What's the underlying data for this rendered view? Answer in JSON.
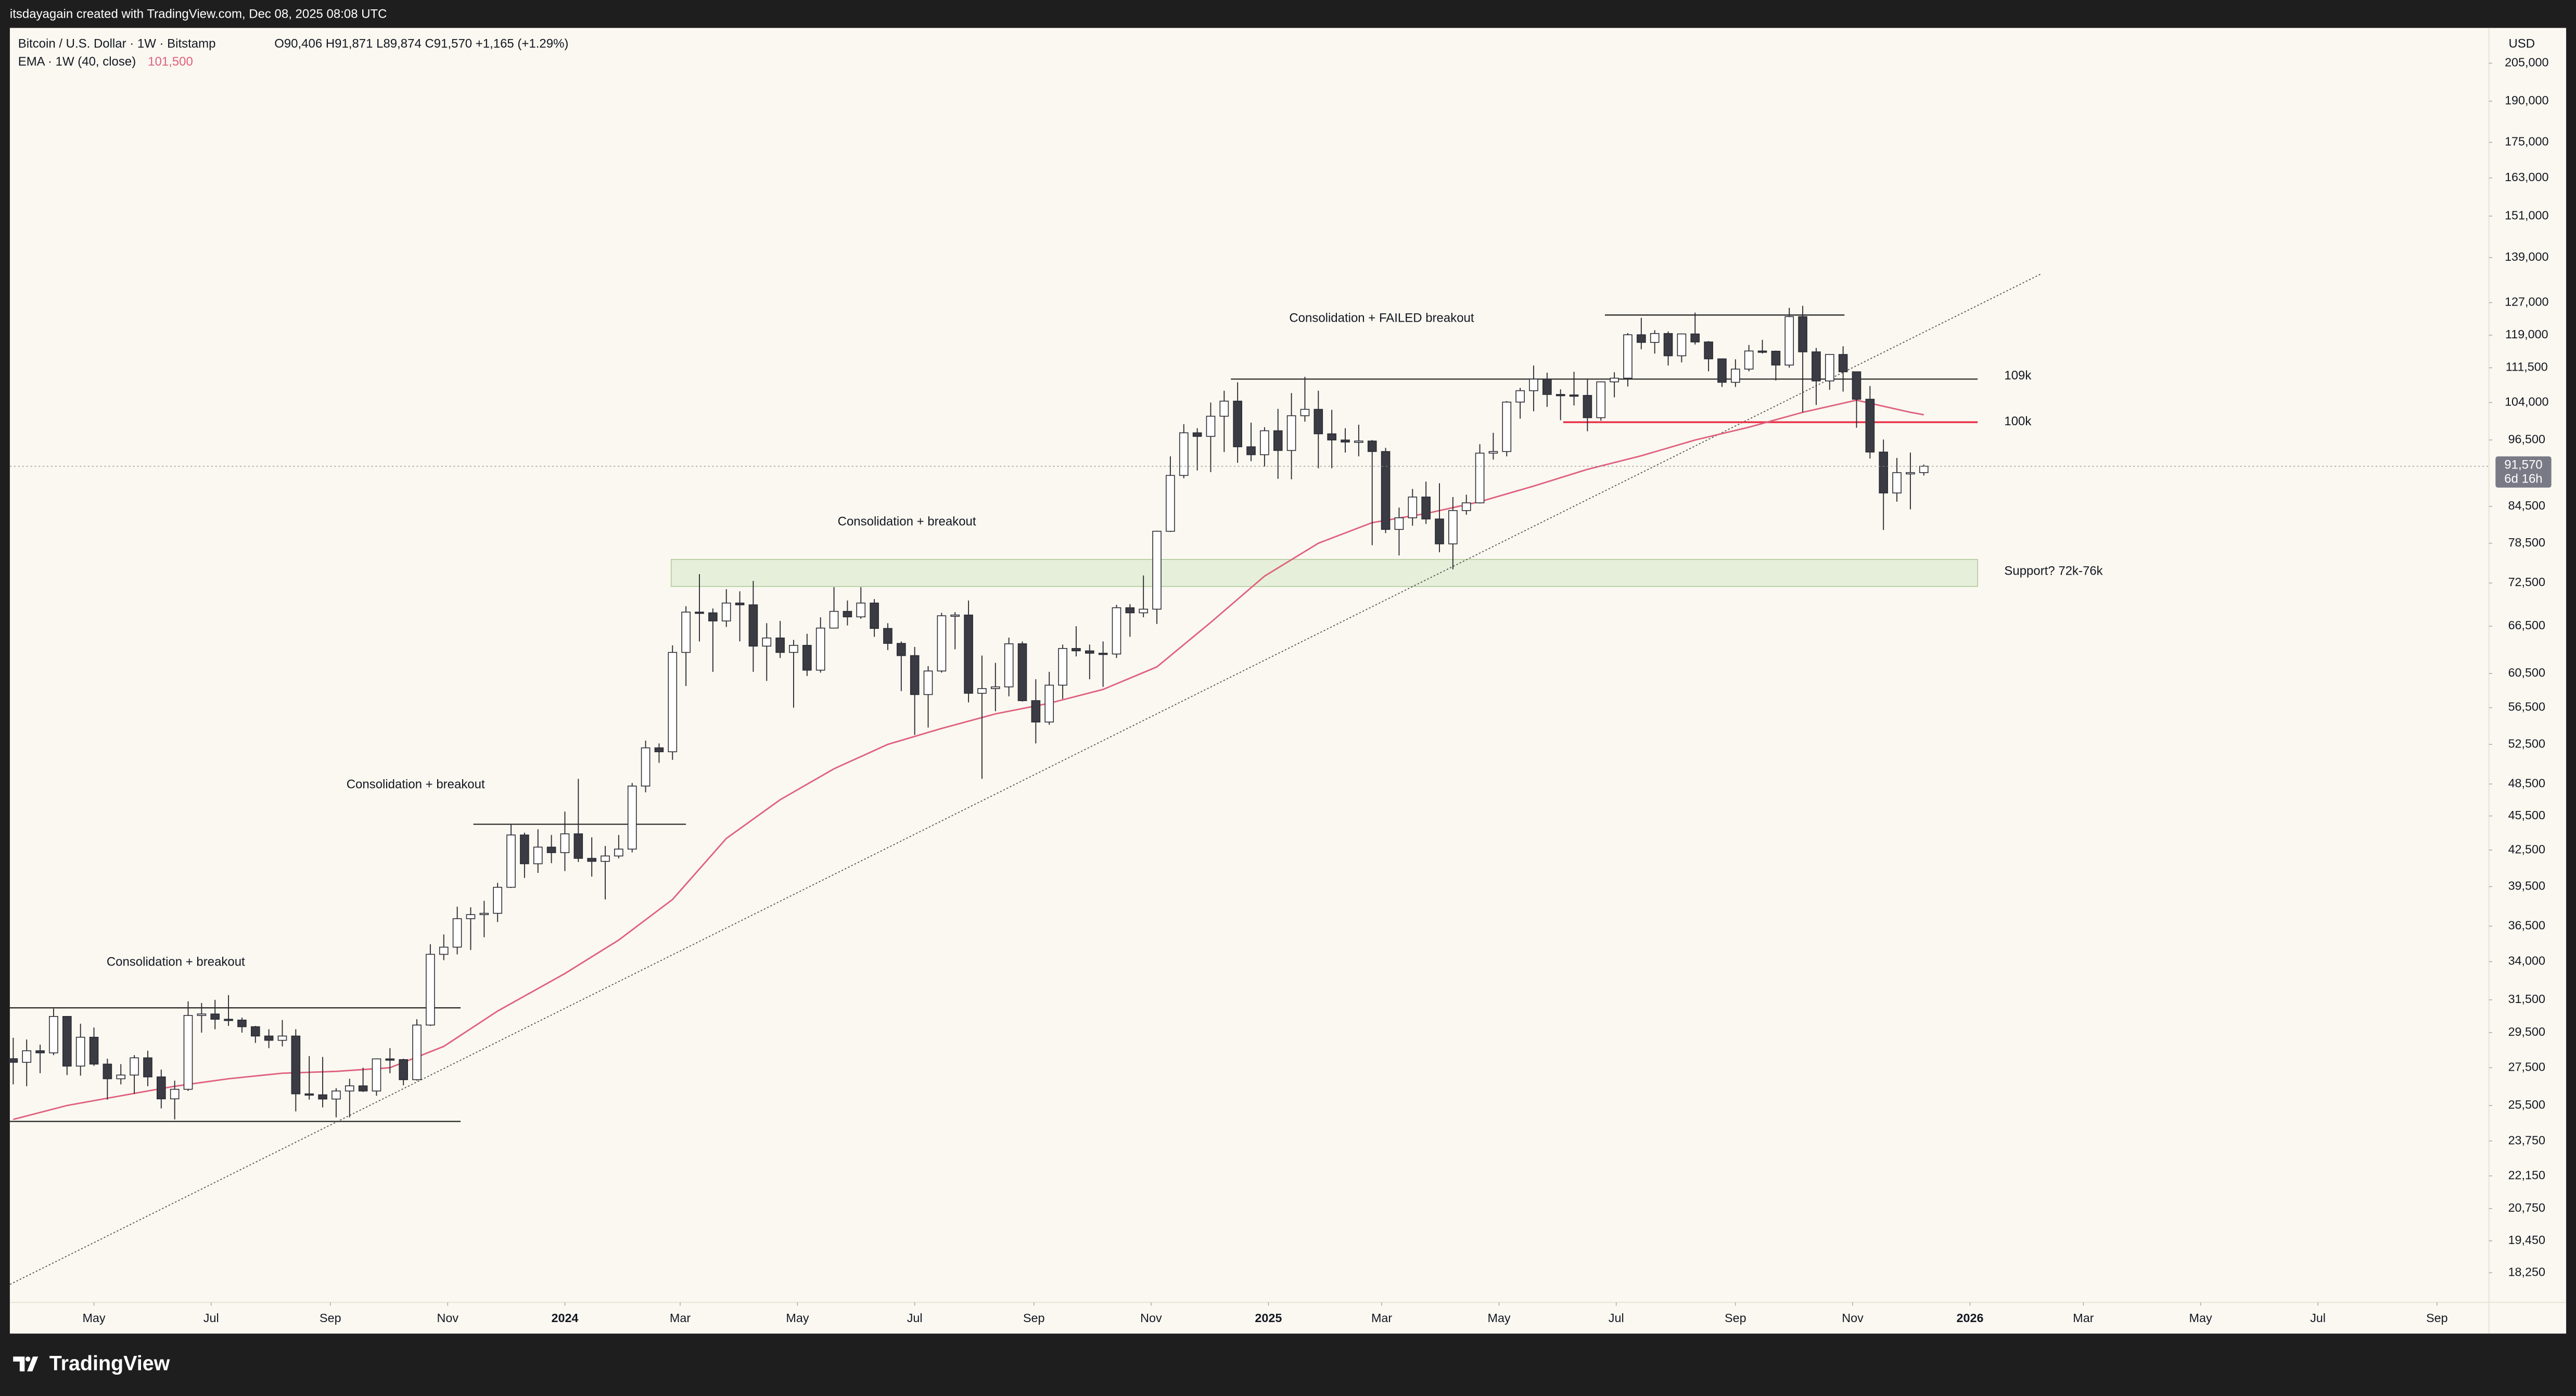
{
  "header": {
    "credit": "itsdayagain created with TradingView.com, Dec 08, 2025 08:08 UTC"
  },
  "chart_data": {
    "type": "candlestick",
    "title": "Bitcoin / U.S. Dollar · 1W · Bitstamp",
    "ohlc_legend": "O90,406 H91,871 L89,874 C91,570 +1,165 (+1.29%)",
    "currency": "USD",
    "log_scale": true,
    "up_color": "#ffffff",
    "down_color": "#3b3b44",
    "wick_color": "#2a2a33",
    "candles": [
      [
        28000,
        29200,
        26600,
        27800
      ],
      [
        27800,
        29100,
        26500,
        28450
      ],
      [
        28450,
        28800,
        27200,
        28330
      ],
      [
        28330,
        30950,
        28200,
        30470
      ],
      [
        30470,
        30500,
        27100,
        27590
      ],
      [
        27590,
        30030,
        27070,
        29230
      ],
      [
        29230,
        29800,
        27600,
        27700
      ],
      [
        27700,
        28000,
        25800,
        26900
      ],
      [
        26900,
        27700,
        26600,
        27100
      ],
      [
        27100,
        28200,
        26100,
        28050
      ],
      [
        28050,
        28450,
        26500,
        27000
      ],
      [
        27000,
        27400,
        25350,
        25840
      ],
      [
        25840,
        26800,
        24800,
        26340
      ],
      [
        26340,
        31400,
        26250,
        30530
      ],
      [
        30530,
        31300,
        29500,
        30620
      ],
      [
        30620,
        31500,
        29700,
        30300
      ],
      [
        30300,
        31800,
        29900,
        30250
      ],
      [
        30250,
        30400,
        29500,
        29850
      ],
      [
        29850,
        29900,
        28900,
        29300
      ],
      [
        29300,
        29700,
        28600,
        29050
      ],
      [
        29050,
        30250,
        28700,
        29300
      ],
      [
        29300,
        29700,
        25200,
        26100
      ],
      [
        26100,
        28150,
        25800,
        26050
      ],
      [
        26050,
        28100,
        25400,
        25830
      ],
      [
        25830,
        26400,
        24900,
        26250
      ],
      [
        26250,
        26900,
        24900,
        26520
      ],
      [
        26520,
        27500,
        26200,
        26250
      ],
      [
        26250,
        28000,
        26000,
        27990
      ],
      [
        27990,
        28600,
        27200,
        27950
      ],
      [
        27950,
        28000,
        26550,
        26850
      ],
      [
        26850,
        30300,
        26800,
        29950
      ],
      [
        29950,
        35200,
        29900,
        34500
      ],
      [
        34500,
        35900,
        34100,
        35000
      ],
      [
        35000,
        37950,
        34500,
        37050
      ],
      [
        37050,
        37900,
        34800,
        37350
      ],
      [
        37350,
        38400,
        35700,
        37450
      ],
      [
        37450,
        39800,
        36800,
        39450
      ],
      [
        39450,
        44700,
        39400,
        43800
      ],
      [
        43800,
        44000,
        40200,
        41350
      ],
      [
        41350,
        44300,
        40600,
        42750
      ],
      [
        42750,
        43800,
        41400,
        42280
      ],
      [
        42280,
        45900,
        40750,
        43900
      ],
      [
        43900,
        49000,
        41500,
        41800
      ],
      [
        41800,
        43600,
        40300,
        41550
      ],
      [
        41550,
        42850,
        38500,
        42000
      ],
      [
        42000,
        43800,
        41800,
        42580
      ],
      [
        42580,
        48600,
        42300,
        48300
      ],
      [
        48300,
        52900,
        47700,
        52140
      ],
      [
        52140,
        52600,
        50600,
        51730
      ],
      [
        51730,
        64000,
        50900,
        63100
      ],
      [
        63100,
        69200,
        59000,
        68400
      ],
      [
        68400,
        73800,
        64500,
        68300
      ],
      [
        68300,
        68900,
        60700,
        67200
      ],
      [
        67200,
        71600,
        66400,
        69650
      ],
      [
        69650,
        71300,
        64500,
        69400
      ],
      [
        69400,
        72800,
        60700,
        63900
      ],
      [
        63900,
        66900,
        59600,
        64950
      ],
      [
        64950,
        67200,
        62400,
        63100
      ],
      [
        63100,
        64700,
        56500,
        64000
      ],
      [
        64000,
        65500,
        60200,
        60900
      ],
      [
        60900,
        67700,
        60600,
        66250
      ],
      [
        66250,
        71900,
        66200,
        68500
      ],
      [
        68500,
        70000,
        66600,
        67750
      ],
      [
        67750,
        71900,
        67500,
        69650
      ],
      [
        69650,
        70200,
        65100,
        66200
      ],
      [
        66200,
        66900,
        63400,
        64250
      ],
      [
        64250,
        64500,
        58400,
        62700
      ],
      [
        62700,
        63800,
        53500,
        58000
      ],
      [
        58000,
        61400,
        54300,
        60800
      ],
      [
        60800,
        68300,
        60600,
        67900
      ],
      [
        67900,
        68400,
        63500,
        68000
      ],
      [
        68000,
        70000,
        57100,
        58150
      ],
      [
        58150,
        62700,
        49000,
        58700
      ],
      [
        58700,
        61800,
        56100,
        58900
      ],
      [
        58900,
        65000,
        57800,
        64200
      ],
      [
        64200,
        64500,
        57200,
        57300
      ],
      [
        57300,
        59800,
        52600,
        54900
      ],
      [
        54900,
        60700,
        54600,
        59100
      ],
      [
        59100,
        64100,
        57500,
        63600
      ],
      [
        63600,
        66500,
        62600,
        63300
      ],
      [
        63300,
        64100,
        59800,
        63000
      ],
      [
        63000,
        64500,
        58900,
        62900
      ],
      [
        62900,
        69400,
        62400,
        69000
      ],
      [
        69000,
        69500,
        65100,
        68300
      ],
      [
        68300,
        73600,
        67700,
        68800
      ],
      [
        68800,
        80500,
        66800,
        80400
      ],
      [
        80400,
        93400,
        80300,
        89900
      ],
      [
        89900,
        99600,
        89400,
        97900
      ],
      [
        97900,
        98800,
        90800,
        97200
      ],
      [
        97200,
        104000,
        90500,
        101200
      ],
      [
        101200,
        106500,
        94200,
        104300
      ],
      [
        104300,
        108300,
        92200,
        95200
      ],
      [
        95200,
        99900,
        92500,
        93700
      ],
      [
        93700,
        99000,
        91500,
        98300
      ],
      [
        98300,
        102700,
        89300,
        94500
      ],
      [
        94500,
        106000,
        89200,
        101300
      ],
      [
        101300,
        109500,
        100100,
        102600
      ],
      [
        102600,
        106500,
        91200,
        97700
      ],
      [
        97700,
        102500,
        91200,
        96500
      ],
      [
        96500,
        98800,
        94100,
        96100
      ],
      [
        96100,
        99500,
        93400,
        96300
      ],
      [
        96300,
        96500,
        78200,
        94300
      ],
      [
        94300,
        95000,
        80100,
        80700
      ],
      [
        80700,
        84300,
        76600,
        82600
      ],
      [
        82600,
        87500,
        81300,
        86100
      ],
      [
        86100,
        88800,
        81600,
        82400
      ],
      [
        82400,
        88500,
        77100,
        78400
      ],
      [
        78400,
        86100,
        74500,
        83800
      ],
      [
        83800,
        86500,
        83100,
        85100
      ],
      [
        85100,
        95700,
        85000,
        94000
      ],
      [
        94000,
        97900,
        92800,
        94300
      ],
      [
        94300,
        104300,
        93400,
        104100
      ],
      [
        104100,
        107100,
        100700,
        106500
      ],
      [
        106500,
        112000,
        102200,
        109000
      ],
      [
        109000,
        110400,
        103100,
        105700
      ],
      [
        105700,
        106800,
        100400,
        105600
      ],
      [
        105600,
        110600,
        103400,
        105500
      ],
      [
        105500,
        108900,
        98200,
        100900
      ],
      [
        100900,
        108500,
        100300,
        108400
      ],
      [
        108400,
        110500,
        105100,
        109200
      ],
      [
        109200,
        119500,
        107400,
        119100
      ],
      [
        119100,
        123200,
        115700,
        117300
      ],
      [
        117300,
        120200,
        114700,
        119400
      ],
      [
        119400,
        119900,
        112000,
        114200
      ],
      [
        114200,
        119400,
        112700,
        119300
      ],
      [
        119300,
        124500,
        116800,
        117400
      ],
      [
        117400,
        117600,
        110700,
        113500
      ],
      [
        113500,
        113600,
        107300,
        108300
      ],
      [
        108300,
        113400,
        107300,
        111200
      ],
      [
        111200,
        116700,
        110700,
        115300
      ],
      [
        115300,
        117900,
        114700,
        115250
      ],
      [
        115250,
        115400,
        108700,
        112100
      ],
      [
        112100,
        125700,
        111500,
        123500
      ],
      [
        123500,
        126200,
        102000,
        115100
      ],
      [
        115100,
        116000,
        103500,
        108600
      ],
      [
        108600,
        114000,
        106700,
        114500
      ],
      [
        114500,
        116400,
        106300,
        110600
      ],
      [
        110600,
        110700,
        98900,
        104700
      ],
      [
        104700,
        107500,
        93000,
        94200
      ],
      [
        94200,
        96600,
        80600,
        86800
      ],
      [
        86800,
        93100,
        85300,
        90400
      ],
      [
        90400,
        94100,
        84000,
        90406
      ],
      [
        90406,
        91871,
        89874,
        91570
      ]
    ],
    "xlim": [
      -0.25,
      184
    ],
    "xticks": [
      {
        "value": 6.0,
        "label": "May"
      },
      {
        "value": 14.71,
        "label": "Jul"
      },
      {
        "value": 23.57,
        "label": "Sep"
      },
      {
        "value": 32.29,
        "label": "Nov"
      },
      {
        "value": 41.0,
        "label": "2024"
      },
      {
        "value": 49.57,
        "label": "Mar"
      },
      {
        "value": 58.29,
        "label": "May"
      },
      {
        "value": 67.0,
        "label": "Jul"
      },
      {
        "value": 75.86,
        "label": "Sep"
      },
      {
        "value": 84.57,
        "label": "Nov"
      },
      {
        "value": 93.29,
        "label": "2025"
      },
      {
        "value": 101.71,
        "label": "Mar"
      },
      {
        "value": 110.43,
        "label": "May"
      },
      {
        "value": 119.14,
        "label": "Jul"
      },
      {
        "value": 128.0,
        "label": "Sep"
      },
      {
        "value": 136.71,
        "label": "Nov"
      },
      {
        "value": 145.43,
        "label": "2026"
      },
      {
        "value": 153.86,
        "label": "Mar"
      },
      {
        "value": 162.57,
        "label": "May"
      },
      {
        "value": 171.29,
        "label": "Jul"
      },
      {
        "value": 180.14,
        "label": "Sep"
      }
    ],
    "ylim": [
      17200,
      220000
    ],
    "yticks": [
      {
        "value": 18250,
        "label": "18,250"
      },
      {
        "value": 19450,
        "label": "19,450"
      },
      {
        "value": 20750,
        "label": "20,750"
      },
      {
        "value": 22150,
        "label": "22,150"
      },
      {
        "value": 23750,
        "label": "23,750"
      },
      {
        "value": 25500,
        "label": "25,500"
      },
      {
        "value": 27500,
        "label": "27,500"
      },
      {
        "value": 29500,
        "label": "29,500"
      },
      {
        "value": 31500,
        "label": "31,500"
      },
      {
        "value": 34000,
        "label": "34,000"
      },
      {
        "value": 36500,
        "label": "36,500"
      },
      {
        "value": 39500,
        "label": "39,500"
      },
      {
        "value": 42500,
        "label": "42,500"
      },
      {
        "value": 45500,
        "label": "45,500"
      },
      {
        "value": 48500,
        "label": "48,500"
      },
      {
        "value": 52500,
        "label": "52,500"
      },
      {
        "value": 56500,
        "label": "56,500"
      },
      {
        "value": 60500,
        "label": "60,500"
      },
      {
        "value": 66500,
        "label": "66,500"
      },
      {
        "value": 72500,
        "label": "72,500"
      },
      {
        "value": 78500,
        "label": "78,500"
      },
      {
        "value": 84500,
        "label": "84,500"
      },
      {
        "value": 96500,
        "label": "96,500"
      },
      {
        "value": 104000,
        "label": "104,000"
      },
      {
        "value": 111500,
        "label": "111,500"
      },
      {
        "value": 119000,
        "label": "119,000"
      },
      {
        "value": 127000,
        "label": "127,000"
      },
      {
        "value": 139000,
        "label": "139,000"
      },
      {
        "value": 151000,
        "label": "151,000"
      },
      {
        "value": 163000,
        "label": "163,000"
      },
      {
        "value": 175000,
        "label": "175,000"
      },
      {
        "value": 190000,
        "label": "190,000"
      },
      {
        "value": 205000,
        "label": "205,000"
      }
    ],
    "ema": {
      "name": "EMA · 1W (40, close)",
      "value_label": "101,500",
      "color": "#e0607e",
      "x": [
        0,
        4,
        8,
        12,
        16,
        20,
        24,
        28,
        32,
        36,
        41,
        45,
        49,
        53,
        57,
        61,
        65,
        69,
        73,
        77,
        81,
        85,
        89,
        93,
        97,
        101,
        105,
        109,
        113,
        117,
        121,
        125,
        129,
        133,
        137,
        141,
        142
      ],
      "values": [
        24800,
        25500,
        26000,
        26500,
        26900,
        27200,
        27300,
        27500,
        28700,
        30800,
        33200,
        35500,
        38500,
        43500,
        47000,
        50000,
        52500,
        54200,
        55800,
        57000,
        58600,
        61300,
        67000,
        73500,
        78500,
        81800,
        83300,
        85300,
        88000,
        91000,
        93500,
        96500,
        99000,
        102000,
        104500,
        102000,
        101500
      ]
    },
    "last_price": {
      "label": "91,570",
      "countdown": "6d 16h"
    },
    "levels": [
      {
        "value": 31000,
        "x": [
          -0.25,
          33.25
        ],
        "color": "#222222"
      },
      {
        "value": 24700,
        "x": [
          -0.25,
          33.25
        ],
        "color": "#222222"
      },
      {
        "value": 44750,
        "x": [
          34.2,
          50.0
        ],
        "color": "#222222"
      },
      {
        "value": 109000,
        "x": [
          90.5,
          146.0
        ],
        "color": "#222222",
        "label": "109k"
      },
      {
        "value": 123900,
        "x": [
          118.3,
          136.1
        ],
        "color": "#222222"
      },
      {
        "value": 100000,
        "x": [
          115.2,
          146.0
        ],
        "color": "#e8334a",
        "label": "100k"
      }
    ],
    "zone": {
      "range": [
        72000,
        76000
      ],
      "x": [
        48.9,
        146.0
      ],
      "color": "#d6e8c6",
      "label": "Support? 72k-76k"
    },
    "trendline": {
      "x": [
        -0.24,
        150.7
      ],
      "y": [
        17830,
        134500
      ]
    },
    "annotations": [
      "Consolidation + breakout",
      "Consolidation + breakout",
      "Consolidation + breakout",
      "Consolidation + FAILED breakout"
    ]
  },
  "footer": {
    "brand": "TradingView"
  }
}
